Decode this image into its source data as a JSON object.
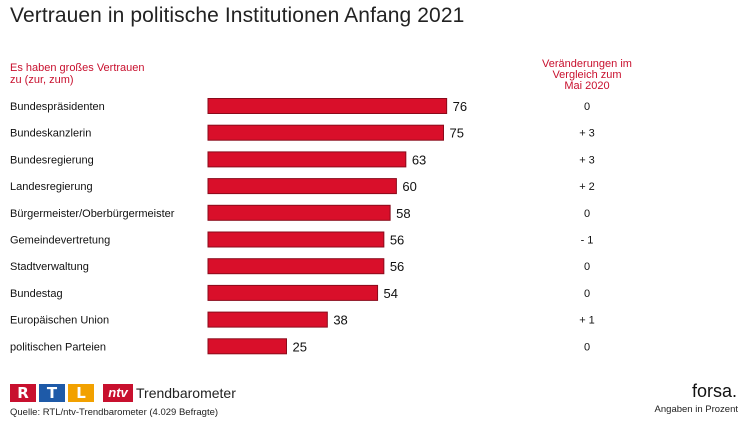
{
  "title": "Vertrauen in politische Institutionen Anfang 2021",
  "subtitle_left": [
    "Es haben großes Vertrauen",
    "zu (zur, zum)"
  ],
  "subtitle_right": [
    "Veränderungen im",
    "Vergleich zum",
    "Mai 2020"
  ],
  "colors": {
    "bar": "#d90f2a",
    "bar_stroke": "#8a0a1b",
    "accent_text": "#c8102e"
  },
  "chart_data": {
    "type": "bar",
    "orientation": "horizontal",
    "categories": [
      "Bundespräsidenten",
      "Bundeskanzlerin",
      "Bundesregierung",
      "Landesregierung",
      "Bürgermeister/Oberbürgermeister",
      "Gemeindevertretung",
      "Stadtverwaltung",
      "Bundestag",
      "Europäischen Union",
      "politischen Parteien"
    ],
    "values": [
      76,
      75,
      63,
      60,
      58,
      56,
      56,
      54,
      38,
      25
    ],
    "changes": [
      "0",
      "+ 3",
      "+ 3",
      "+ 2",
      "0",
      "- 1",
      "0",
      "0",
      "+ 1",
      "0"
    ],
    "xlim": [
      0,
      100
    ]
  },
  "footer": {
    "logo_letters": [
      "R",
      "T",
      "L"
    ],
    "logo_colors": [
      "#c8102e",
      "#1e5aa8",
      "#f2a100"
    ],
    "ntv_label": "ntv",
    "trend_label": "Trendbarometer",
    "source": "Quelle: RTL/ntv-Trendbarometer (4.029 Befragte)",
    "brand": "forsa.",
    "unit_note": "Angaben in Prozent"
  }
}
